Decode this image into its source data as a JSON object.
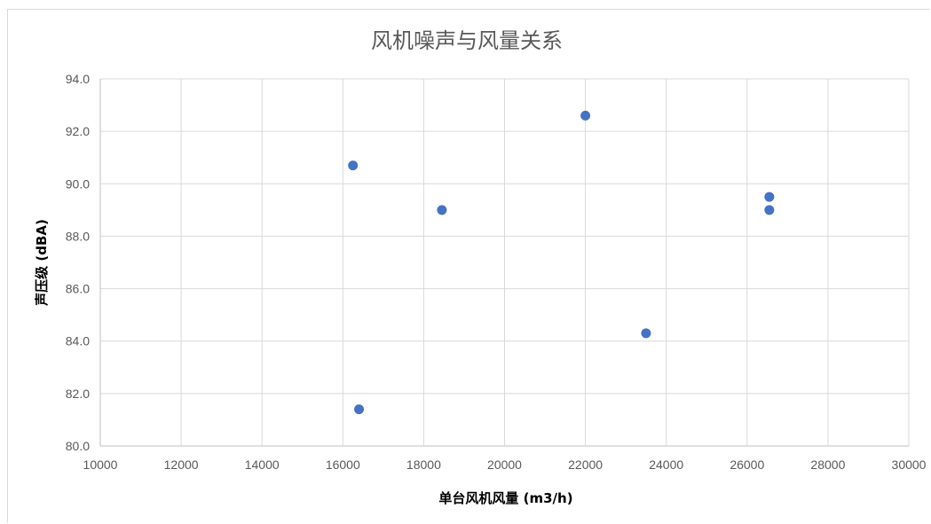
{
  "chart_data": {
    "type": "scatter",
    "title": "风机噪声与风量关系",
    "xlabel": "单台风机风量 (m3/h)",
    "ylabel": "声压级 (dBA)",
    "xlim": [
      10000,
      30000
    ],
    "ylim": [
      80.0,
      94.0
    ],
    "xticks": [
      "10000",
      "12000",
      "14000",
      "16000",
      "18000",
      "20000",
      "22000",
      "24000",
      "26000",
      "28000",
      "30000"
    ],
    "yticks": [
      "80.0",
      "82.0",
      "84.0",
      "86.0",
      "88.0",
      "90.0",
      "92.0",
      "94.0"
    ],
    "grid": true,
    "legend": "none",
    "series": [
      {
        "color": "#4472c4",
        "points": [
          {
            "x": 16250,
            "y": 90.7
          },
          {
            "x": 16400,
            "y": 81.4
          },
          {
            "x": 18450,
            "y": 89.0
          },
          {
            "x": 22000,
            "y": 92.6
          },
          {
            "x": 23500,
            "y": 84.3
          },
          {
            "x": 26550,
            "y": 89.5
          },
          {
            "x": 26550,
            "y": 89.0
          }
        ]
      }
    ]
  }
}
